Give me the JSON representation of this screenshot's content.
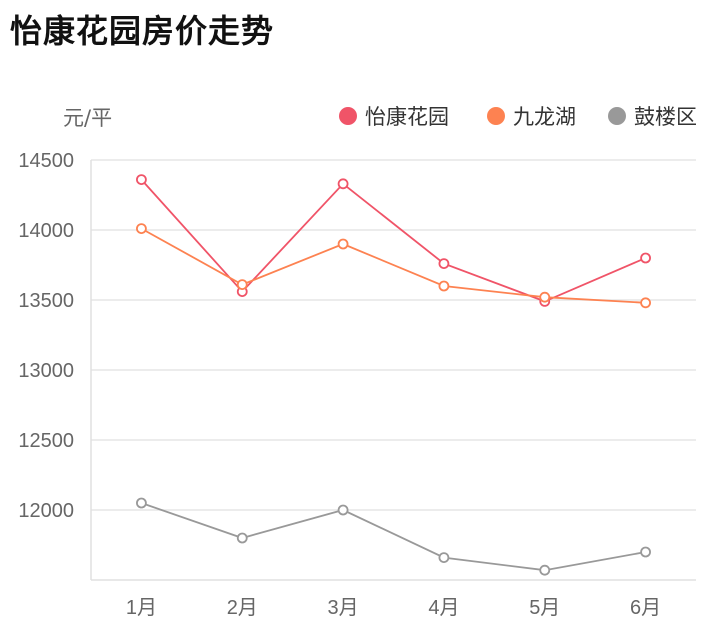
{
  "title": "怡康花园房价走势",
  "chart_data": {
    "type": "line",
    "title": "怡康花园房价走势",
    "ylabel": "元/平",
    "categories": [
      "1月",
      "2月",
      "3月",
      "4月",
      "5月",
      "6月"
    ],
    "ylim": [
      11500,
      14500
    ],
    "yticks": [
      12000,
      12500,
      13000,
      13500,
      14000,
      14500
    ],
    "grid": true,
    "legend_position": "top-right",
    "series": [
      {
        "name": "怡康花园",
        "color": "#f05468",
        "values": [
          14360,
          13560,
          14330,
          13760,
          13490,
          13800
        ]
      },
      {
        "name": "九龙湖",
        "color": "#fd8251",
        "values": [
          14010,
          13610,
          13900,
          13600,
          13520,
          13480
        ]
      },
      {
        "name": "鼓楼区",
        "color": "#999999",
        "values": [
          12050,
          11800,
          12000,
          11660,
          11570,
          11700
        ]
      }
    ]
  }
}
